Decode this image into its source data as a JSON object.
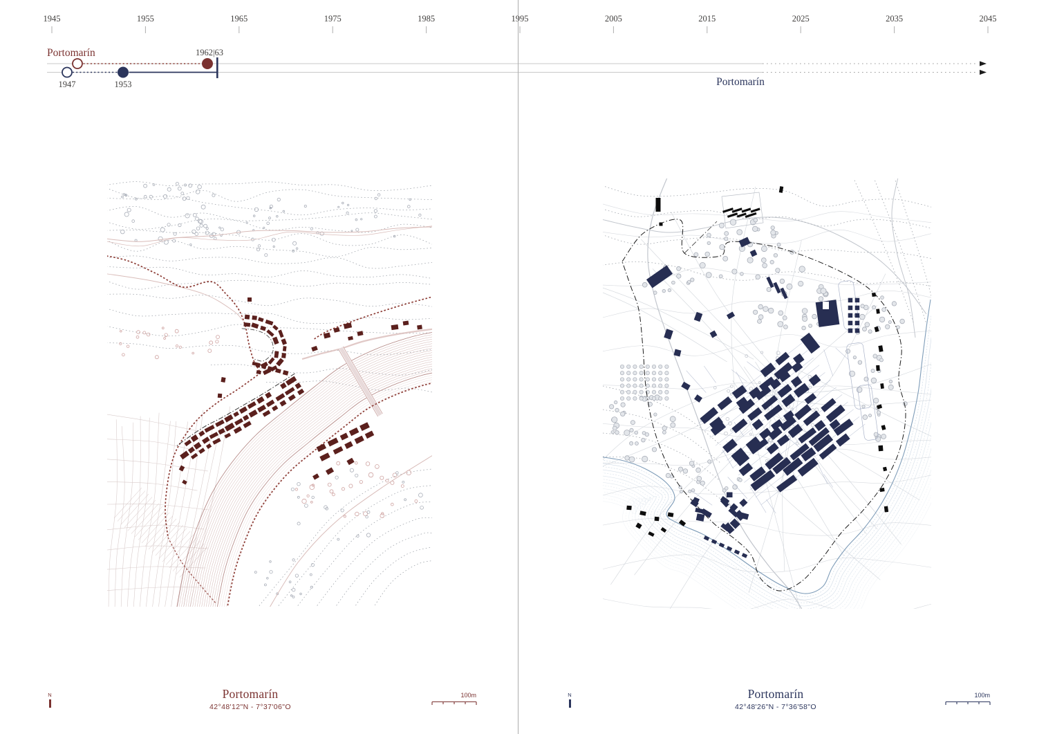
{
  "timeline": {
    "years": [
      "1945",
      "1955",
      "1965",
      "1975",
      "1985",
      "1995",
      "2005",
      "2015",
      "2025",
      "2035",
      "2045"
    ],
    "old_town_label": "Portomarín",
    "flood_event_label": "1962|63",
    "plan_year_label": "1947",
    "relocation_year_label": "1953",
    "new_town_label": "Portomarín"
  },
  "left_panel": {
    "title": "Portomarín",
    "coordinates": "42°48'12\"N - 7°37'06\"O",
    "north_label": "N",
    "scale_label": "100m"
  },
  "right_panel": {
    "title": "Portomarín",
    "coordinates": "42°48'26\"N - 7°36'58\"O",
    "north_label": "N",
    "scale_label": "100m"
  },
  "colors": {
    "maroon_text": "#7a3230",
    "maroon_building": "#5b201d",
    "maroon_trail": "#8c3b34",
    "pink_road": "#d9bcb9",
    "pink_road_light": "#e8dada",
    "river_line": "#c29a97",
    "river_edge": "#a87672",
    "pink_tree": "#cfa3a1",
    "navy_text": "#2b355c",
    "navy_building": "#272e52",
    "parcel_blue": "#aab3c9",
    "gray_contour": "#9ca1a8",
    "gray_tree": "#a9aeb8",
    "gray_tree_fill": "#e3e6ea",
    "gray_parcel": "#cdd1d7",
    "gray_line": "#c9c9c9",
    "tick": "#adadad",
    "year_text": "#413f3e",
    "black_building": "#0d0d0d",
    "boundary": "#1b1b1b",
    "water_edge": "#7e9cb8",
    "water_band": "#c7d4e1"
  }
}
